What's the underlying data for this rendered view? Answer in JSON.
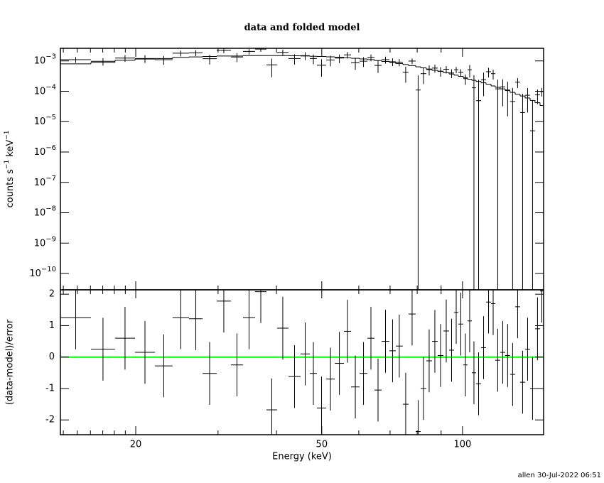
{
  "chart_data": {
    "type": "spectral-fit",
    "title": "data and folded model",
    "x_label": "Energy (keV)",
    "footer": "allen  30-Jul-2022 06:51",
    "xscale": "log",
    "xlim": [
      13.8,
      149.1
    ],
    "xticks": [
      20,
      50,
      100
    ],
    "xticks_minor": [
      14,
      15,
      16,
      17,
      18,
      19,
      30,
      40,
      60,
      70,
      80,
      90
    ],
    "bins": [
      13.8,
      16.04,
      18.06,
      19.93,
      21.98,
      23.98,
      26.0,
      27.8,
      29.8,
      31.96,
      33.92,
      36.0,
      38.08,
      40.12,
      42.44,
      45.04,
      47.14,
      48.82,
      51.1,
      53.3,
      55.78,
      57.76,
      60.24,
      62.6,
      64.82,
      67.14,
      69.76,
      71.98,
      74.54,
      76.66,
      79.4,
      81.36,
      83.68,
      86.06,
      88.5,
      91.02,
      93.6,
      95.94,
      97.96,
      100.4,
      102.5,
      104.7,
      106.9,
      109.6,
      112.3,
      115.1,
      117.5,
      120.4,
      123.4,
      126.4,
      129.6,
      132.8,
      136.1,
      139.5,
      142.9,
      146.5,
      149.1
    ],
    "top": {
      "y_label_parts": [
        "counts s",
        "−1",
        " keV",
        "−1"
      ],
      "yscale": "log",
      "ylim": [
        2.9e-11,
        0.0026
      ],
      "yticks": [
        {
          "value": 0.001,
          "label": "10",
          "exponent": "−3"
        },
        {
          "value": 0.0001,
          "label": "10",
          "exponent": "−4"
        },
        {
          "value": 1e-05,
          "label": "10",
          "exponent": "−5"
        },
        {
          "value": 1e-06,
          "label": "10",
          "exponent": "−6"
        },
        {
          "value": 1e-07,
          "label": "10",
          "exponent": "−7"
        },
        {
          "value": 1e-08,
          "label": "10",
          "exponent": "−8"
        },
        {
          "value": 1e-09,
          "label": "10",
          "exponent": "−9"
        },
        {
          "value": 1e-10,
          "label": "10",
          "exponent": "−10"
        }
      ],
      "data": {
        "color": "#000000",
        "values": [
          0.0011,
          0.00097,
          0.00124,
          0.0012,
          0.0011,
          0.00179,
          0.00184,
          0.00118,
          0.00222,
          0.00134,
          0.00206,
          0.00244,
          0.00074,
          0.00191,
          0.0012,
          0.00149,
          0.0012,
          0.00072,
          0.00107,
          0.00124,
          0.00158,
          0.00087,
          0.00098,
          0.0013,
          0.00071,
          0.0011,
          0.00094,
          0.00091,
          0.00042,
          0.00099,
          0.00011,
          0.00038,
          0.00052,
          0.00058,
          0.00046,
          0.00053,
          0.0004,
          0.00051,
          0.00042,
          0.00026,
          0.00051,
          0.00013,
          4.9e-05,
          0.00024,
          0.00044,
          0.00038,
          0.00012,
          0.00014,
          0.00011,
          4.6e-05,
          0.0002,
          2e-05,
          7.4e-05,
          5e-06,
          7.6e-05,
          9.8e-05
        ],
        "errors": [
          0.00024,
          0.00027,
          0.000315,
          0.000345,
          0.00036,
          0.00039,
          0.000405,
          0.00042,
          0.000435,
          0.000435,
          0.00045,
          0.00045,
          0.00045,
          0.00045,
          0.000444,
          0.000435,
          0.000426,
          0.00042,
          0.000408,
          0.000396,
          0.000381,
          0.000366,
          0.000348,
          0.00033,
          0.000309,
          0.000288,
          0.000267,
          0.000246,
          0.000228,
          0.00021,
          0.000224,
          0.000207,
          0.000189,
          0.000172,
          0.000158,
          0.000144,
          0.00013,
          0.000119,
          0.000109,
          9.8e-05,
          0.000225,
          0.000207,
          0.000189,
          0.000171,
          0.000153,
          0.000135,
          0.000122,
          0.000108,
          9.5e-05,
          8.3e-05,
          7.2e-05,
          6.3e-05,
          5.4e-05,
          4.5e-05,
          3.8e-05,
          3.1e-05
        ]
      },
      "model": {
        "color": "#000000",
        "values": [
          0.0008,
          0.0009,
          0.00105,
          0.00115,
          0.0012,
          0.0013,
          0.00135,
          0.0014,
          0.00145,
          0.00145,
          0.0015,
          0.0015,
          0.0015,
          0.0015,
          0.00148,
          0.00145,
          0.00142,
          0.0014,
          0.00136,
          0.00132,
          0.00127,
          0.00122,
          0.00116,
          0.0011,
          0.00103,
          0.00096,
          0.00089,
          0.00082,
          0.00076,
          0.0007,
          0.00064,
          0.00059,
          0.00054,
          0.00049,
          0.00045,
          0.00041,
          0.00037,
          0.00034,
          0.00031,
          0.00028,
          0.00025,
          0.00023,
          0.00021,
          0.00019,
          0.00017,
          0.00015,
          0.000135,
          0.00012,
          0.000105,
          9.2e-05,
          8e-05,
          7e-05,
          6e-05,
          5e-05,
          4.2e-05,
          3.4e-05
        ]
      }
    },
    "bottom": {
      "y_label": "(data-model)/error",
      "ylim": [
        -2.47,
        2.14
      ],
      "yticks": [
        -2,
        -1,
        0,
        1,
        2
      ],
      "reference_line": {
        "value": 0,
        "color": "#00ff00"
      },
      "residuals": {
        "color": "#000000",
        "values": [
          1.25,
          0.25,
          0.6,
          0.15,
          -0.28,
          1.25,
          1.22,
          -0.52,
          1.78,
          -0.25,
          1.25,
          2.08,
          -1.68,
          0.92,
          -0.62,
          0.1,
          -0.52,
          -1.62,
          -0.7,
          -0.2,
          0.82,
          -0.95,
          -0.52,
          0.6,
          -1.05,
          0.5,
          0.2,
          0.35,
          -1.5,
          1.37,
          -2.37,
          -1.0,
          -0.12,
          0.5,
          0.05,
          0.83,
          0.22,
          1.42,
          1.05,
          -0.25,
          1.15,
          -0.5,
          -0.85,
          0.3,
          1.75,
          1.7,
          -0.1,
          0.15,
          0.05,
          -0.55,
          1.6,
          -0.8,
          0.25,
          -1.0,
          0.9,
          2.1
        ],
        "errors": [
          1,
          1,
          1,
          1,
          1,
          1,
          1,
          1,
          1,
          1,
          1,
          1,
          1,
          1,
          1,
          1,
          1,
          1,
          1,
          1,
          1,
          1,
          1,
          1,
          1,
          1,
          1,
          1,
          1,
          1,
          1,
          1,
          1,
          1,
          1,
          1,
          1,
          1,
          1,
          1,
          1,
          1,
          1,
          1,
          1,
          1,
          1,
          1,
          1,
          1,
          1,
          1,
          1,
          1,
          1,
          1
        ]
      }
    }
  }
}
